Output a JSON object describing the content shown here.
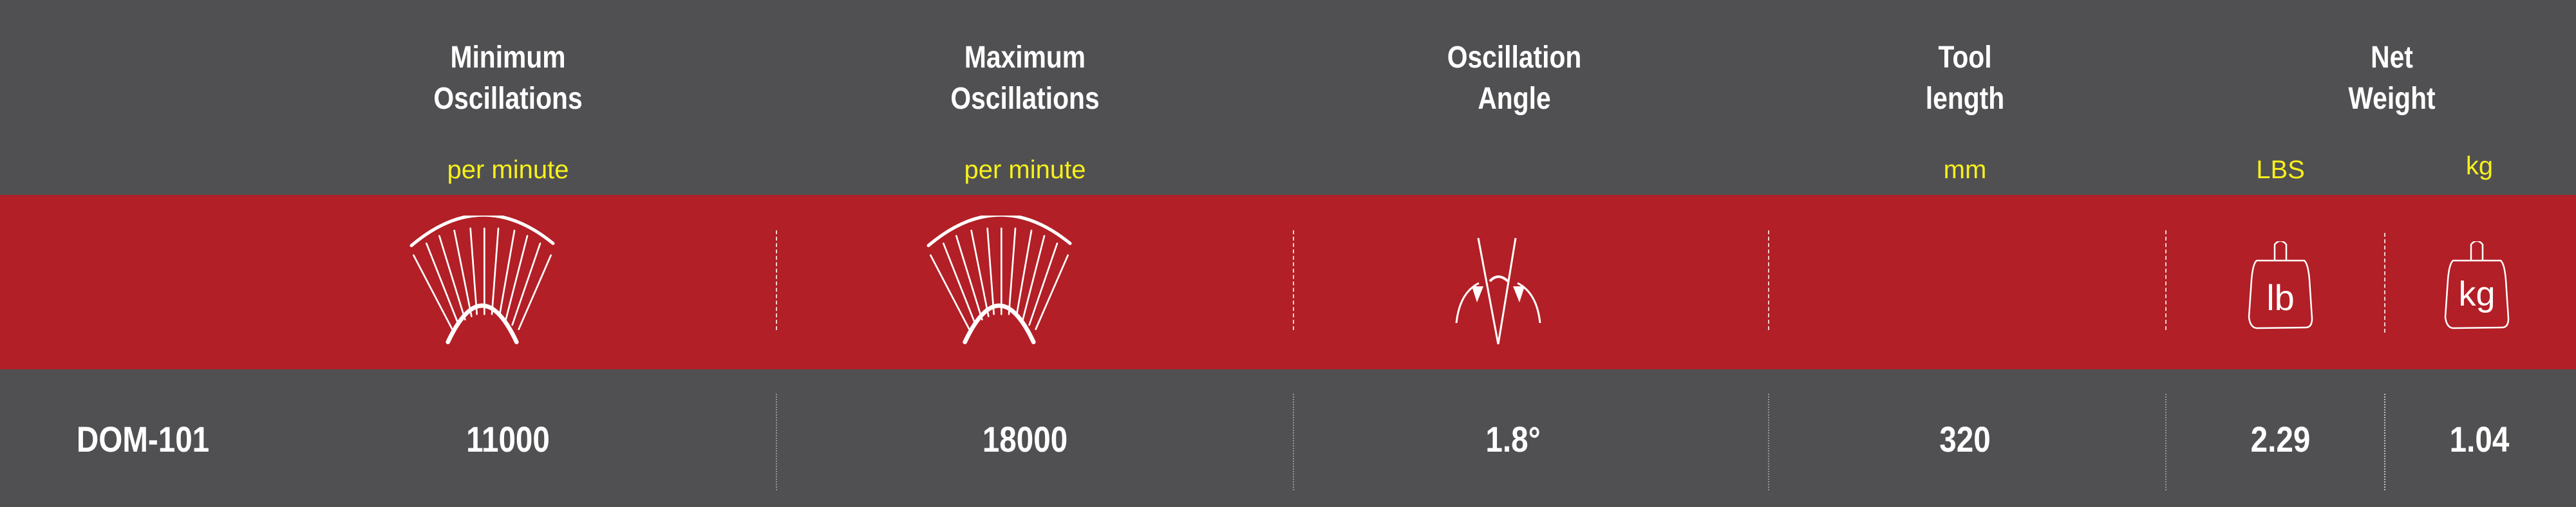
{
  "header": {
    "columns": [
      {
        "title_line1": "Minimum",
        "title_line2": "Oscillations",
        "unit": "per minute",
        "icon": "oscillation-fan-icon"
      },
      {
        "title_line1": "Maximum",
        "title_line2": "Oscillations",
        "unit": "per minute",
        "icon": "oscillation-fan-icon"
      },
      {
        "title_line1": "Oscillation",
        "title_line2": "Angle",
        "unit": "",
        "icon": "oscillation-angle-icon"
      },
      {
        "title_line1": "Tool",
        "title_line2": "length",
        "unit": "mm",
        "icon": ""
      },
      {
        "title_line1": "Net",
        "title_line2": "Weight",
        "units": [
          "LBS",
          "kg"
        ],
        "icons": [
          "weight-lb-icon",
          "weight-kg-icon"
        ],
        "icon_labels": [
          "lb",
          "kg"
        ]
      }
    ]
  },
  "row": {
    "model": "DOM-101",
    "min_oscillations": "11000",
    "max_oscillations": "18000",
    "angle": "1.8°",
    "tool_length": "320",
    "weight_lbs": "2.29",
    "weight_kg": "1.04"
  },
  "colors": {
    "background": "#505052",
    "band": "#b21f26",
    "unit_text": "#f7f01c",
    "text": "#ffffff"
  }
}
